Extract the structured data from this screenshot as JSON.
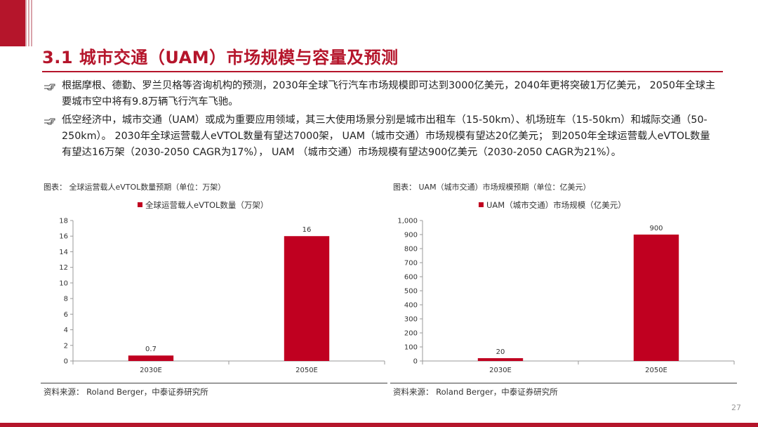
{
  "slide": {
    "title": "3.1 城市交通（UAM）市场规模与容量及预测",
    "bullets": [
      "根据摩根、德勤、罗兰贝格等咨询机构的预测，2030年全球飞行汽车市场规模即可达到3000亿美元，2040年更将突破1万亿美元， 2050年全球主要城市空中将有9.8万辆飞行汽车飞驰。",
      "低空经济中，城市交通（UAM）或成为重要应用领域，其三大使用场景分别是城市出租车（15-50km）、机场班车（15-50km）和城际交通（50-250km）。 2030年全球运营载人eVTOL数量有望达7000架， UAM（城市交通）市场规模有望达20亿美元； 到2050年全球运营载人eVTOL数量有望达16万架（2030-2050 CAGR为17%）， UAM （城市交通）市场规模有望达900亿美元（2030-2050 CAGR为21%）。"
    ],
    "page_number": "27",
    "accent_color": "#b5152b",
    "bar_color": "#c00020"
  },
  "charts": [
    {
      "caption": "图表： 全球运营载人eVTOL数量预期（单位：万架）",
      "legend": "全球运营载人eVTOL数量（万架）",
      "source": "资料来源： Roland Berger，中泰证券研究所"
    },
    {
      "caption": "图表： UAM（城市交通）市场规模预期（单位：亿美元）",
      "legend": "UAM（城市交通）市场规模（亿美元）",
      "source": "资料来源： Roland Berger，中泰证券研究所"
    }
  ],
  "chart_data": [
    {
      "type": "bar",
      "categories": [
        "2030E",
        "2050E"
      ],
      "series": [
        {
          "name": "全球运营载人eVTOL数量（万架）",
          "values": [
            0.7,
            16
          ]
        }
      ],
      "data_labels": [
        "0.7",
        "16"
      ],
      "ylim": [
        0,
        18
      ],
      "yticks": [
        0,
        2,
        4,
        6,
        8,
        10,
        12,
        14,
        16,
        18
      ],
      "ytick_labels": [
        "0",
        "2",
        "4",
        "6",
        "8",
        "10",
        "12",
        "14",
        "16",
        "18"
      ],
      "title": "",
      "xlabel": "",
      "ylabel": "",
      "grid": false,
      "legend_position": "top-center"
    },
    {
      "type": "bar",
      "categories": [
        "2030E",
        "2050E"
      ],
      "series": [
        {
          "name": "UAM（城市交通）市场规模（亿美元）",
          "values": [
            20,
            900
          ]
        }
      ],
      "data_labels": [
        "20",
        "900"
      ],
      "ylim": [
        0,
        1000
      ],
      "yticks": [
        0,
        100,
        200,
        300,
        400,
        500,
        600,
        700,
        800,
        900,
        1000
      ],
      "ytick_labels": [
        "0",
        "100",
        "200",
        "300",
        "400",
        "500",
        "600",
        "700",
        "800",
        "900",
        "1,000"
      ],
      "title": "",
      "xlabel": "",
      "ylabel": "",
      "grid": false,
      "legend_position": "top-center"
    }
  ]
}
